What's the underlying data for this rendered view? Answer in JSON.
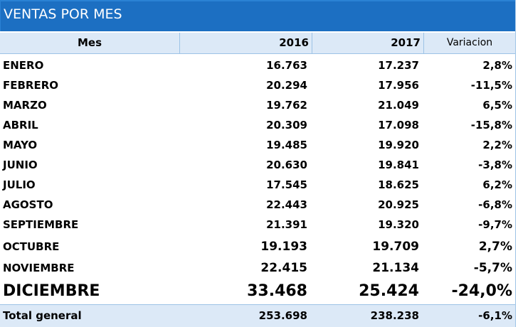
{
  "title": "VENTAS POR MES",
  "columns": {
    "mes": "Mes",
    "y2016": "2016",
    "y2017": "2017",
    "variacion": "Variacion"
  },
  "rows": [
    {
      "mes": "ENERO",
      "y2016": "16.763",
      "y2017": "17.237",
      "variacion": "2,8%"
    },
    {
      "mes": "FEBRERO",
      "y2016": "20.294",
      "y2017": "17.956",
      "variacion": "-11,5%"
    },
    {
      "mes": "MARZO",
      "y2016": "19.762",
      "y2017": "21.049",
      "variacion": "6,5%"
    },
    {
      "mes": "ABRIL",
      "y2016": "20.309",
      "y2017": "17.098",
      "variacion": "-15,8%"
    },
    {
      "mes": "MAYO",
      "y2016": "19.485",
      "y2017": "19.920",
      "variacion": "2,2%"
    },
    {
      "mes": "JUNIO",
      "y2016": "20.630",
      "y2017": "19.841",
      "variacion": "-3,8%"
    },
    {
      "mes": "JULIO",
      "y2016": "17.545",
      "y2017": "18.625",
      "variacion": "6,2%"
    },
    {
      "mes": "AGOSTO",
      "y2016": "22.443",
      "y2017": "20.925",
      "variacion": "-6,8%"
    },
    {
      "mes": "SEPTIEMBRE",
      "y2016": "21.391",
      "y2017": "19.320",
      "variacion": "-9,7%"
    },
    {
      "mes": "OCTUBRE",
      "y2016": "19.193",
      "y2017": "19.709",
      "variacion": "2,7%"
    },
    {
      "mes": "NOVIEMBRE",
      "y2016": "22.415",
      "y2017": "21.134",
      "variacion": "-5,7%"
    },
    {
      "mes": "DICIEMBRE",
      "y2016": "33.468",
      "y2017": "25.424",
      "variacion": "-24,0%"
    }
  ],
  "total": {
    "mes": "Total general",
    "y2016": "253.698",
    "y2017": "238.238",
    "variacion": "-6,1%"
  },
  "colors": {
    "title_bg": "#1c6fc2",
    "header_bg": "#dce9f7",
    "border": "#9dc3e6"
  }
}
